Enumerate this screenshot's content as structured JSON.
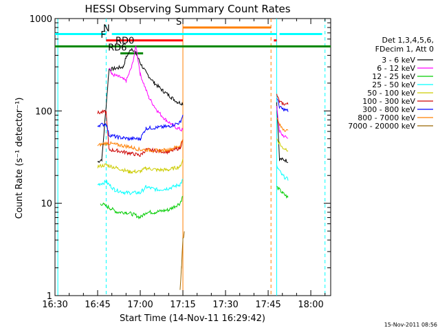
{
  "chart_data": {
    "type": "line",
    "title": "HESSI Observing Summary Count Rates",
    "xlabel": "Start Time (14-Nov-11 16:29:42)",
    "ylabel": "Count Rate (s⁻¹ detector⁻¹)",
    "y_scale": "log",
    "ylim": [
      1,
      1000
    ],
    "xlim": [
      "16:30",
      "18:07"
    ],
    "x_ticks": [
      "16:30",
      "16:45",
      "17:00",
      "17:15",
      "17:30",
      "17:45",
      "18:00"
    ],
    "y_ticks": [
      "1",
      "10",
      "100",
      "1000"
    ],
    "grid": false,
    "legend_position": "right",
    "legend_header": [
      "Det 1,3,4,5,6,",
      "FDecim 1, Att 0"
    ],
    "footer_timestamp": "15-Nov-2011 08:56",
    "series": [
      {
        "name": "3 - 6 keV",
        "color": "#000000",
        "segments": [
          {
            "x": [
              "16:45:00",
              "16:46:30",
              "16:49:00",
              "16:54:00",
              "16:55:00",
              "16:57:00",
              "16:58:30",
              "17:00:00",
              "17:02:00",
              "17:05:00",
              "17:08:00",
              "17:11:00",
              "17:13:00",
              "17:15:00"
            ],
            "y": [
              28,
              30,
              280,
              300,
              380,
              480,
              420,
              330,
              260,
              200,
              165,
              140,
              125,
              120
            ]
          },
          {
            "x": [
              "17:48:00",
              "17:49:00",
              "17:50:00",
              "17:51:30",
              "17:52:00"
            ],
            "y": [
              125,
              30,
              30,
              29,
              28
            ]
          }
        ]
      },
      {
        "name": "6 - 12 keV",
        "color": "#ff00ff",
        "segments": [
          {
            "x": [
              "16:49:00",
              "16:50:00",
              "16:53:00",
              "16:55:00",
              "16:57:00",
              "16:58:30",
              "17:00:00",
              "17:03:00",
              "17:06:00",
              "17:09:00",
              "17:12:00",
              "17:14:00",
              "17:15:00"
            ],
            "y": [
              300,
              250,
              230,
              210,
              300,
              500,
              250,
              140,
              100,
              80,
              68,
              63,
              62
            ]
          },
          {
            "x": [
              "17:48:00",
              "17:49:00",
              "17:50:00",
              "17:52:00"
            ],
            "y": [
              110,
              60,
              55,
              50
            ]
          }
        ]
      },
      {
        "name": "12 - 25 keV",
        "color": "#00cc00",
        "segments": [
          {
            "x": [
              "16:46:00",
              "16:49:00",
              "16:52:00",
              "16:55:00",
              "16:58:00",
              "17:00:00",
              "17:02:00",
              "17:05:00",
              "17:10:00",
              "17:14:00",
              "17:15:00"
            ],
            "y": [
              10,
              9,
              8,
              8,
              7.5,
              7,
              8,
              8,
              8.5,
              10,
              12
            ]
          },
          {
            "x": [
              "17:48:00",
              "17:50:00",
              "17:52:00"
            ],
            "y": [
              15,
              13,
              11.5
            ]
          }
        ]
      },
      {
        "name": "25 - 50 keV",
        "color": "#00ffff",
        "segments": [
          {
            "x": [
              "16:45:00",
              "16:48:00",
              "16:51:00",
              "16:55:00",
              "17:00:00",
              "17:02:00",
              "17:06:00",
              "17:10:00",
              "17:14:00",
              "17:15:00"
            ],
            "y": [
              16,
              17,
              14,
              13,
              13,
              15,
              14,
              14.5,
              16,
              18
            ]
          },
          {
            "x": [
              "17:48:00",
              "17:50:00",
              "17:52:00"
            ],
            "y": [
              25,
              20,
              18
            ]
          }
        ]
      },
      {
        "name": "50 - 100 keV",
        "color": "#cccc00",
        "segments": [
          {
            "x": [
              "16:45:00",
              "16:48:00",
              "16:52:00",
              "16:56:00",
              "17:00:00",
              "17:02:00",
              "17:06:00",
              "17:10:00",
              "17:14:00",
              "17:15:00"
            ],
            "y": [
              25,
              26,
              24,
              22,
              22,
              24,
              23,
              23,
              25,
              30
            ]
          },
          {
            "x": [
              "17:48:00",
              "17:50:00",
              "17:52:00"
            ],
            "y": [
              50,
              40,
              38
            ]
          }
        ]
      },
      {
        "name": "100 - 300 keV",
        "color": "#cc0000",
        "segments": [
          {
            "x": [
              "16:45:00",
              "16:48:00",
              "16:49:00",
              "16:52:00",
              "16:56:00",
              "17:00:00",
              "17:02:00",
              "17:06:00",
              "17:10:00",
              "17:14:00",
              "17:15:00"
            ],
            "y": [
              95,
              98,
              38,
              37,
              35,
              33,
              38,
              37,
              36,
              40,
              48
            ]
          },
          {
            "x": [
              "17:48:00",
              "17:49:00",
              "17:50:00",
              "17:52:00"
            ],
            "y": [
              150,
              125,
              120,
              118
            ]
          }
        ]
      },
      {
        "name": "300 - 800 keV",
        "color": "#0000ff",
        "segments": [
          {
            "x": [
              "16:45:00",
              "16:48:00",
              "16:49:00",
              "16:52:00",
              "16:56:00",
              "17:00:00",
              "17:02:00",
              "17:06:00",
              "17:10:00",
              "17:14:00",
              "17:15:00"
            ],
            "y": [
              70,
              72,
              55,
              52,
              50,
              50,
              65,
              66,
              68,
              75,
              90
            ]
          },
          {
            "x": [
              "17:48:00",
              "17:49:00",
              "17:50:00",
              "17:52:00"
            ],
            "y": [
              140,
              110,
              105,
              100
            ]
          }
        ]
      },
      {
        "name": "800 - 7000 keV",
        "color": "#ff7f00",
        "segments": [
          {
            "x": [
              "16:45:00",
              "16:48:00",
              "16:52:00",
              "16:56:00",
              "17:00:00",
              "17:02:00",
              "17:06:00",
              "17:10:00",
              "17:14:00",
              "17:15:00"
            ],
            "y": [
              42,
              45,
              43,
              41,
              38,
              38,
              37,
              38,
              42,
              50
            ]
          },
          {
            "x": [
              "17:48:00",
              "17:49:00",
              "17:50:00",
              "17:52:00"
            ],
            "y": [
              85,
              70,
              65,
              60
            ]
          }
        ]
      },
      {
        "name": "7000 - 20000 keV",
        "color": "#996600",
        "segments": [
          {
            "x": [
              "17:14:00",
              "17:14:30",
              "17:15:00",
              "17:15:30"
            ],
            "y": [
              1.2,
              2,
              4,
              5
            ]
          }
        ]
      }
    ],
    "flag_bars": [
      {
        "label": "N",
        "color": "#00ffff",
        "spans": [
          [
            "16:30",
            "16:48"
          ],
          [
            "16:50",
            "17:48"
          ],
          [
            "17:49",
            "18:04"
          ]
        ]
      },
      {
        "label": "F",
        "color": "#ff0000",
        "spans": [
          [
            "16:48",
            "17:15"
          ],
          [
            "17:47",
            "17:48"
          ]
        ]
      },
      {
        "label": "S",
        "color": "#ff7f00",
        "spans": [
          [
            "17:15",
            "17:46"
          ]
        ]
      },
      {
        "label": "RD0",
        "color": "#008800",
        "spans": [
          [
            "16:30",
            "18:07"
          ]
        ]
      },
      {
        "label": "RD6",
        "color": "#008800",
        "spans": [
          [
            "16:53",
            "17:01"
          ]
        ]
      }
    ],
    "flag_bars_y": {
      "N": 680,
      "F": 580,
      "S": 800,
      "RD0": 500,
      "RD6": 420
    },
    "vlines": [
      {
        "x": "16:31",
        "color": "#00ffff",
        "style": "solid"
      },
      {
        "x": "16:48",
        "color": "#00ffff",
        "style": "dashed"
      },
      {
        "x": "17:15",
        "color": "#ff7f00",
        "style": "solid"
      },
      {
        "x": "17:46",
        "color": "#ff7f00",
        "style": "dashed"
      },
      {
        "x": "17:48",
        "color": "#00ffff",
        "style": "solid"
      },
      {
        "x": "18:05",
        "color": "#00ffff",
        "style": "dashed"
      }
    ]
  }
}
